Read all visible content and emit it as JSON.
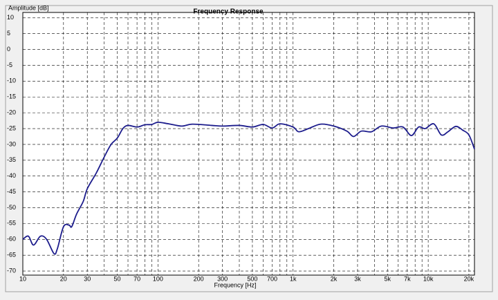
{
  "chart_data": {
    "type": "line",
    "title": "Frequency Response",
    "y_label": "Amplitude [dB]",
    "x_label": "Frequency [Hz]",
    "x_scale": "log",
    "grid": true,
    "xlim": [
      10,
      22000
    ],
    "ylim": [
      -71.3,
      11.7
    ],
    "xticks": [
      10,
      20,
      30,
      50,
      70,
      100,
      200,
      300,
      500,
      700,
      {
        "value": 1000,
        "label": "1k"
      },
      {
        "value": 2000,
        "label": "2k"
      },
      {
        "value": 3000,
        "label": "3k"
      },
      {
        "value": 5000,
        "label": "5k"
      },
      {
        "value": 7000,
        "label": "7k"
      },
      {
        "value": 10000,
        "label": "10k"
      },
      {
        "value": 20000,
        "label": "20k"
      }
    ],
    "minor_xticks": [
      40,
      60,
      80,
      90,
      400,
      600,
      800,
      900,
      4000,
      6000,
      8000,
      9000
    ],
    "yticks": [
      10,
      5,
      0,
      -5,
      -10,
      -15,
      -20,
      -25,
      -30,
      -35,
      -40,
      -45,
      -50,
      -55,
      -60,
      -65,
      -70
    ],
    "series": [
      {
        "name": "Frequency Response",
        "color": "#1c1c8c",
        "x": [
          10,
          11,
          12,
          13.5,
          15,
          17,
          18,
          20,
          22,
          23,
          25,
          28,
          30,
          35,
          40,
          45,
          50,
          55,
          60,
          70,
          80,
          90,
          100,
          120,
          150,
          180,
          250,
          300,
          400,
          500,
          600,
          700,
          800,
          1000,
          1100,
          1300,
          1600,
          2000,
          2500,
          2800,
          3200,
          3800,
          4500,
          5500,
          6500,
          7500,
          8500,
          9500,
          11000,
          12500,
          14000,
          16000,
          18000,
          20000,
          22000
        ],
        "values": [
          -60,
          -59,
          -61.8,
          -59,
          -60,
          -64.5,
          -63,
          -56,
          -55.5,
          -56,
          -52,
          -48,
          -44,
          -39,
          -34,
          -30,
          -28,
          -25,
          -24,
          -24.5,
          -23.8,
          -23.7,
          -23,
          -23.5,
          -24.2,
          -23.6,
          -24,
          -24.2,
          -24,
          -24.5,
          -23.7,
          -24.8,
          -23.5,
          -24.5,
          -26,
          -25,
          -23.6,
          -24.2,
          -25.8,
          -27.5,
          -25.8,
          -26,
          -24.2,
          -24.8,
          -24.5,
          -27.2,
          -24.5,
          -25,
          -23.5,
          -27,
          -26,
          -24.3,
          -25.5,
          -27,
          -31.5
        ]
      }
    ]
  }
}
